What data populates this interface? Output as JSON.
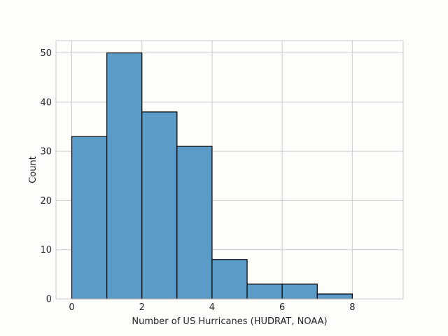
{
  "chart_data": {
    "type": "bar",
    "subtype": "histogram",
    "title": "",
    "xlabel": "Number of US Hurricanes (HUDRAT, NOAA)",
    "ylabel": "Count",
    "bins": [
      {
        "start": 0,
        "end": 1,
        "count": 33
      },
      {
        "start": 1,
        "end": 2,
        "count": 50
      },
      {
        "start": 2,
        "end": 3,
        "count": 38
      },
      {
        "start": 3,
        "end": 4,
        "count": 31
      },
      {
        "start": 4,
        "end": 5,
        "count": 8
      },
      {
        "start": 5,
        "end": 6,
        "count": 3
      },
      {
        "start": 6,
        "end": 7,
        "count": 3
      },
      {
        "start": 7,
        "end": 8,
        "count": 1
      },
      {
        "start": 8,
        "end": 9,
        "count": 0
      }
    ],
    "xlim": [
      -0.45,
      9.45
    ],
    "ylim": [
      0,
      52.5
    ],
    "xticks": [
      0,
      2,
      4,
      6,
      8
    ],
    "yticks": [
      0,
      10,
      20,
      30,
      40,
      50
    ],
    "grid": true,
    "colors": {
      "bar_fill": "#5b9bc8",
      "bar_edge": "#000000",
      "grid": "#cccccc",
      "spine": "#cccccc",
      "plot_background": "#fffdfa"
    }
  }
}
